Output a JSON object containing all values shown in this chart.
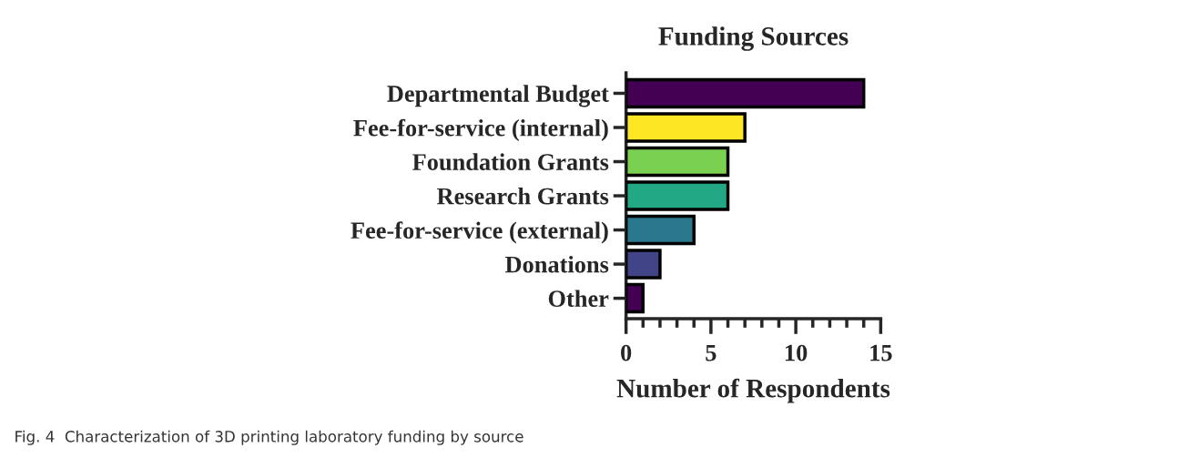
{
  "chart_data": {
    "type": "bar",
    "orientation": "horizontal",
    "title": "Funding Sources",
    "xlabel": "Number of Respondents",
    "categories": [
      "Departmental Budget",
      "Fee-for-service (internal)",
      "Foundation Grants",
      "Research Grants",
      "Fee-for-service (external)",
      "Donations",
      "Other"
    ],
    "values": [
      14,
      7,
      6,
      6,
      4,
      2,
      1
    ],
    "colors": [
      "#440154",
      "#fde725",
      "#7ad151",
      "#22a884",
      "#2a788e",
      "#414487",
      "#440154"
    ],
    "xlim": [
      0,
      15
    ],
    "xticks": [
      0,
      {
        "value": 1,
        "label": null
      },
      {
        "value": 2,
        "label": null
      },
      {
        "value": 3,
        "label": null
      },
      {
        "value": 4,
        "label": null
      },
      5,
      {
        "value": 6,
        "label": null
      },
      {
        "value": 7,
        "label": null
      },
      {
        "value": 8,
        "label": null
      },
      {
        "value": 9,
        "label": null
      },
      10,
      {
        "value": 11,
        "label": null
      },
      {
        "value": 12,
        "label": null
      },
      {
        "value": 13,
        "label": null
      },
      {
        "value": 14,
        "label": null
      },
      15
    ],
    "grid": false,
    "legend": false,
    "annotations": [
      "Fig. 4  Characterization of 3D printing laboratory funding by source"
    ]
  }
}
